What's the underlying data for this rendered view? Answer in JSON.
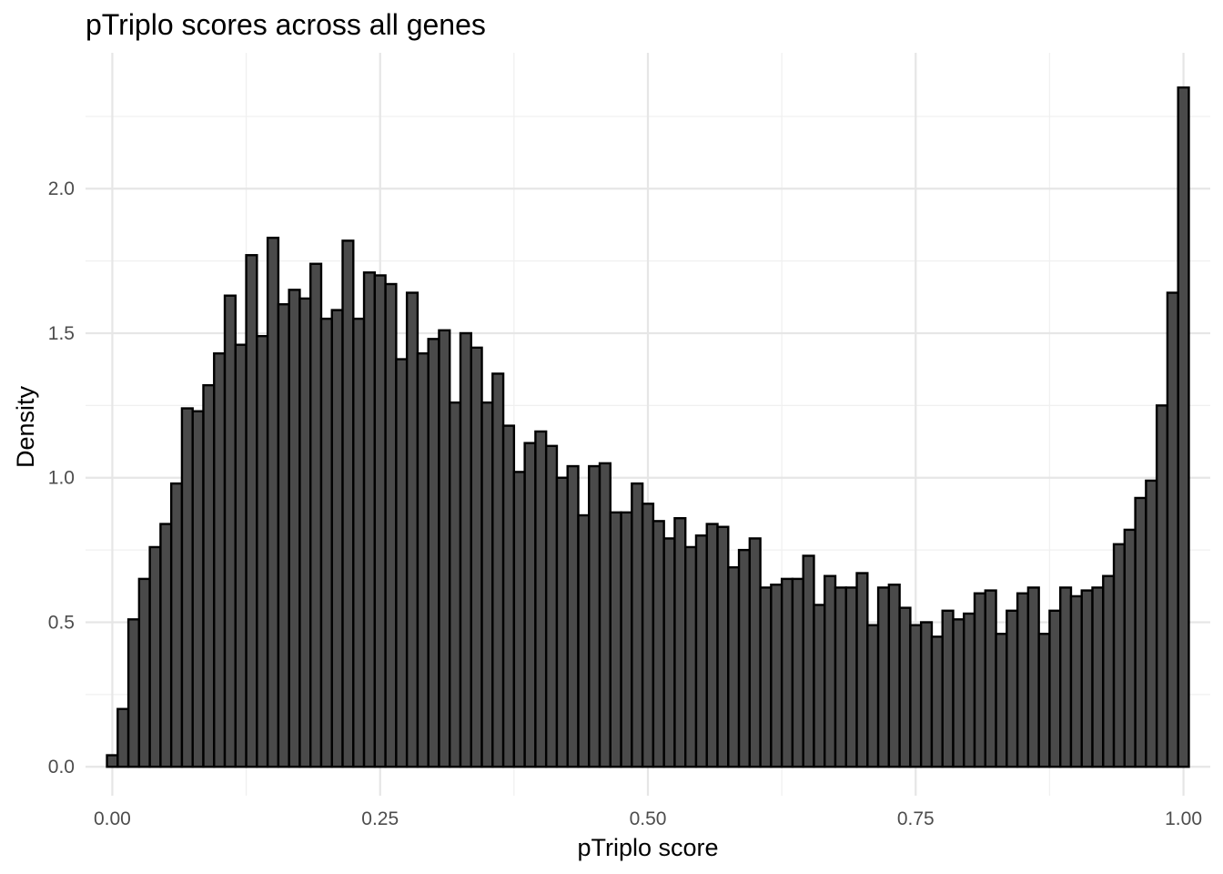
{
  "chart_data": {
    "type": "bar",
    "title": "pTriplo scores across all genes",
    "xlabel": "pTriplo score",
    "ylabel": "Density",
    "xlim": [
      -0.025,
      1.025
    ],
    "ylim": [
      -0.1,
      2.47
    ],
    "x_ticks": [
      0.0,
      0.25,
      0.5,
      0.75,
      1.0
    ],
    "x_tick_labels": [
      "0.00",
      "0.25",
      "0.50",
      "0.75",
      "1.00"
    ],
    "y_ticks": [
      0.0,
      0.5,
      1.0,
      1.5,
      2.0
    ],
    "y_tick_labels": [
      "0.0",
      "0.5",
      "1.0",
      "1.5",
      "2.0"
    ],
    "grid": true,
    "bin_width": 0.01,
    "bin_centers_start": 0.0,
    "values": [
      0.04,
      0.2,
      0.51,
      0.65,
      0.76,
      0.84,
      0.98,
      1.24,
      1.23,
      1.32,
      1.43,
      1.63,
      1.46,
      1.77,
      1.49,
      1.83,
      1.6,
      1.65,
      1.62,
      1.74,
      1.55,
      1.58,
      1.82,
      1.55,
      1.71,
      1.7,
      1.67,
      1.41,
      1.64,
      1.43,
      1.48,
      1.51,
      1.26,
      1.5,
      1.45,
      1.26,
      1.36,
      1.18,
      1.02,
      1.12,
      1.16,
      1.11,
      1.0,
      1.04,
      0.87,
      1.04,
      1.05,
      0.88,
      0.88,
      0.98,
      0.91,
      0.85,
      0.79,
      0.86,
      0.76,
      0.8,
      0.84,
      0.83,
      0.69,
      0.75,
      0.79,
      0.62,
      0.63,
      0.65,
      0.65,
      0.73,
      0.56,
      0.66,
      0.62,
      0.62,
      0.67,
      0.49,
      0.62,
      0.63,
      0.55,
      0.49,
      0.5,
      0.45,
      0.54,
      0.51,
      0.53,
      0.6,
      0.61,
      0.46,
      0.54,
      0.6,
      0.62,
      0.46,
      0.54,
      0.62,
      0.59,
      0.61,
      0.62,
      0.66,
      0.77,
      0.82,
      0.93,
      0.99,
      1.25,
      1.64,
      2.35
    ]
  }
}
